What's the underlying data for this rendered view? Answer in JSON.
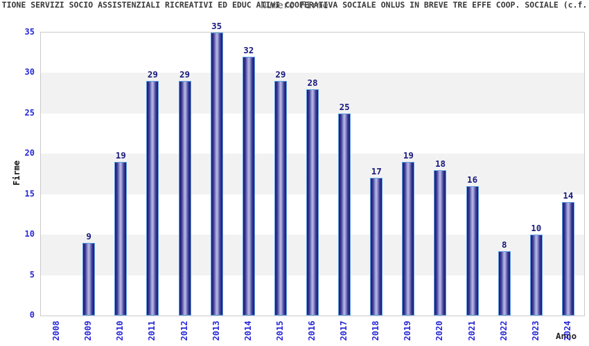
{
  "chart_data": {
    "type": "bar",
    "title": "TIONE SERVIZI SOCIO ASSISTENZIALI RICREATIVI ED EDUC ATIVI COOPERATIVA SOCIALE ONLUS IN BREVE TRE EFFE COOP. SOCIALE (c.f.",
    "subtitle": "Numero Firme",
    "xlabel": "Anno",
    "ylabel": "Firme",
    "categories": [
      "2008",
      "2009",
      "2010",
      "2011",
      "2012",
      "2013",
      "2014",
      "2015",
      "2016",
      "2017",
      "2018",
      "2019",
      "2020",
      "2021",
      "2022",
      "2023",
      "2024"
    ],
    "values": [
      0,
      9,
      19,
      29,
      29,
      35,
      32,
      29,
      28,
      25,
      17,
      19,
      18,
      16,
      8,
      10,
      14
    ],
    "ylim": [
      0,
      35
    ],
    "yticks": [
      0,
      5,
      10,
      15,
      20,
      25,
      30,
      35
    ],
    "grid": "alternating horizontal bands every 5 units",
    "legend": "none",
    "colors": {
      "bar_edge": "#18186e",
      "bar_mid": "#3c3c9a",
      "bar_highlight": "#b2b2e0",
      "bar_border": "#5f9fe0",
      "value_label": "#191980",
      "tick_label": "#2727d8",
      "band_gray": "#f2f2f2",
      "band_white": "#ffffff",
      "plot_border": "#c9c9c9",
      "title_color": "#3a3a3a",
      "subtitle_color": "#555555",
      "axis_title_color": "#111111"
    }
  }
}
